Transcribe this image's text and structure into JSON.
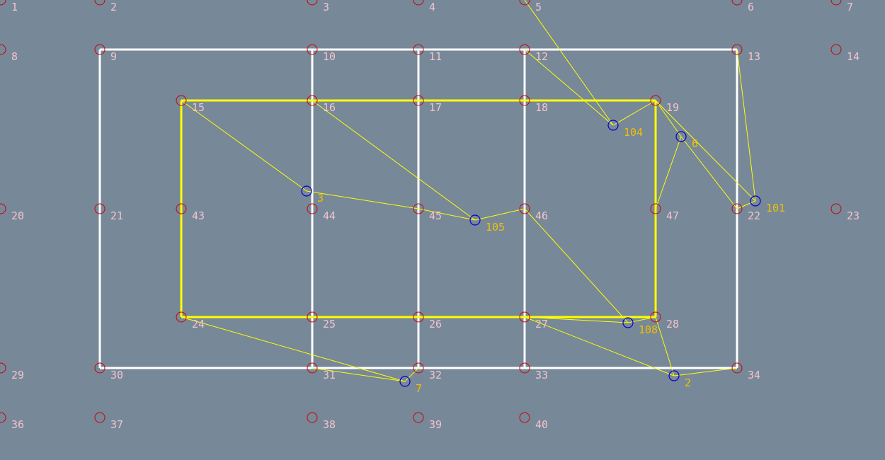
{
  "colors": {
    "background": "#778899",
    "outer_frame": "#ffffff",
    "inner_frame": "#ffff00",
    "links": "#ffff00",
    "node_circle": "#cc0000",
    "node_label": "#f3c4cc",
    "marker_circle": "#0000cc",
    "marker_label": "#f0c000"
  },
  "nodes": [
    {
      "id": "1",
      "label": "1"
    },
    {
      "id": "2",
      "label": "2"
    },
    {
      "id": "3",
      "label": "3"
    },
    {
      "id": "4",
      "label": "4"
    },
    {
      "id": "5",
      "label": "5"
    },
    {
      "id": "6",
      "label": "6"
    },
    {
      "id": "7",
      "label": "7"
    },
    {
      "id": "8",
      "label": "8"
    },
    {
      "id": "9",
      "label": "9"
    },
    {
      "id": "10",
      "label": "10"
    },
    {
      "id": "11",
      "label": "11"
    },
    {
      "id": "12",
      "label": "12"
    },
    {
      "id": "13",
      "label": "13"
    },
    {
      "id": "14",
      "label": "14"
    },
    {
      "id": "15",
      "label": "15"
    },
    {
      "id": "16",
      "label": "16"
    },
    {
      "id": "17",
      "label": "17"
    },
    {
      "id": "18",
      "label": "18"
    },
    {
      "id": "19",
      "label": "19"
    },
    {
      "id": "20",
      "label": "20"
    },
    {
      "id": "21",
      "label": "21"
    },
    {
      "id": "22",
      "label": "22"
    },
    {
      "id": "23",
      "label": "23"
    },
    {
      "id": "24",
      "label": "24"
    },
    {
      "id": "25",
      "label": "25"
    },
    {
      "id": "26",
      "label": "26"
    },
    {
      "id": "27",
      "label": "27"
    },
    {
      "id": "28",
      "label": "28"
    },
    {
      "id": "29",
      "label": "29"
    },
    {
      "id": "30",
      "label": "30"
    },
    {
      "id": "31",
      "label": "31"
    },
    {
      "id": "32",
      "label": "32"
    },
    {
      "id": "33",
      "label": "33"
    },
    {
      "id": "34",
      "label": "34"
    },
    {
      "id": "36",
      "label": "36"
    },
    {
      "id": "37",
      "label": "37"
    },
    {
      "id": "38",
      "label": "38"
    },
    {
      "id": "39",
      "label": "39"
    },
    {
      "id": "40",
      "label": "40"
    },
    {
      "id": "43",
      "label": "43"
    },
    {
      "id": "44",
      "label": "44"
    },
    {
      "id": "45",
      "label": "45"
    },
    {
      "id": "46",
      "label": "46"
    },
    {
      "id": "47",
      "label": "47"
    }
  ],
  "markers": [
    {
      "id": "m104",
      "label": "104"
    },
    {
      "id": "m6",
      "label": "6"
    },
    {
      "id": "m101",
      "label": "101"
    },
    {
      "id": "m3",
      "label": "3"
    },
    {
      "id": "m105",
      "label": "105"
    },
    {
      "id": "m108",
      "label": "108"
    },
    {
      "id": "m7",
      "label": "7"
    },
    {
      "id": "m2",
      "label": "2"
    }
  ],
  "outer_frame_edges": [
    [
      "9",
      "10"
    ],
    [
      "10",
      "11"
    ],
    [
      "11",
      "12"
    ],
    [
      "12",
      "13"
    ],
    [
      "30",
      "31"
    ],
    [
      "31",
      "32"
    ],
    [
      "32",
      "33"
    ],
    [
      "33",
      "34"
    ],
    [
      "9",
      "21"
    ],
    [
      "21",
      "30"
    ],
    [
      "10",
      "16"
    ],
    [
      "16",
      "44"
    ],
    [
      "44",
      "25"
    ],
    [
      "25",
      "31"
    ],
    [
      "11",
      "17"
    ],
    [
      "17",
      "45"
    ],
    [
      "45",
      "26"
    ],
    [
      "26",
      "32"
    ],
    [
      "12",
      "18"
    ],
    [
      "18",
      "46"
    ],
    [
      "46",
      "27"
    ],
    [
      "27",
      "33"
    ],
    [
      "13",
      "22"
    ],
    [
      "22",
      "34"
    ]
  ],
  "inner_frame_edges": [
    [
      "15",
      "16"
    ],
    [
      "16",
      "17"
    ],
    [
      "17",
      "18"
    ],
    [
      "18",
      "19"
    ],
    [
      "24",
      "25"
    ],
    [
      "25",
      "26"
    ],
    [
      "26",
      "27"
    ],
    [
      "27",
      "28"
    ],
    [
      "15",
      "43"
    ],
    [
      "43",
      "24"
    ],
    [
      "19",
      "47"
    ],
    [
      "47",
      "28"
    ]
  ],
  "link_edges": [
    [
      "5",
      "m104"
    ],
    [
      "12",
      "m104"
    ],
    [
      "m104",
      "19"
    ],
    [
      "19",
      "m6"
    ],
    [
      "m6",
      "47"
    ],
    [
      "m6",
      "22"
    ],
    [
      "19",
      "m101"
    ],
    [
      "13",
      "m101"
    ],
    [
      "22",
      "m101"
    ],
    [
      "15",
      "m3"
    ],
    [
      "m3",
      "45"
    ],
    [
      "16",
      "m105"
    ],
    [
      "45",
      "m105"
    ],
    [
      "m105",
      "46"
    ],
    [
      "46",
      "m108"
    ],
    [
      "27",
      "m108"
    ],
    [
      "m108",
      "28"
    ],
    [
      "24",
      "m7"
    ],
    [
      "31",
      "m7"
    ],
    [
      "32",
      "m7"
    ],
    [
      "27",
      "m2"
    ],
    [
      "28",
      "m2"
    ],
    [
      "m2",
      "34"
    ]
  ]
}
